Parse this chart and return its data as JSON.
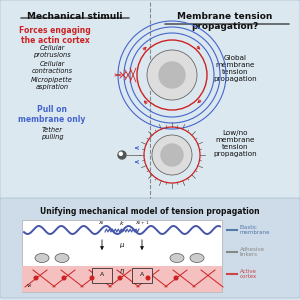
{
  "bg_color": "#dce8f0",
  "title_left": "Mechanical stimuli",
  "title_right": "Membrane tension\npropagation?",
  "subtitle_red": "Forces engaging\nthe actin cortex",
  "items_italic": [
    "Cellular\nprotrusions",
    "Cellular\ncontractions",
    "Micropipette\naspiration"
  ],
  "subtitle_blue": "Pull on\nmembrane only",
  "items_italic2": [
    "Tether\npulling"
  ],
  "right_top": "Global\nmembrane\ntension\npropagation",
  "right_bottom": "Low/no\nmembrane\ntension\npropagation",
  "bottom_title": "Unifying mechanical model of tension propagation",
  "legend_items": [
    "Elastic\nmembrane",
    "Adhesive\nlinkers",
    "Active\ncortex"
  ],
  "legend_colors": [
    "#5577aa",
    "#888888",
    "#cc4444"
  ],
  "red": "#cc2222",
  "blue": "#4466cc",
  "black": "#111111",
  "gray": "#aaaaaa",
  "light_gray": "#dddddd",
  "dark_gray": "#555555"
}
